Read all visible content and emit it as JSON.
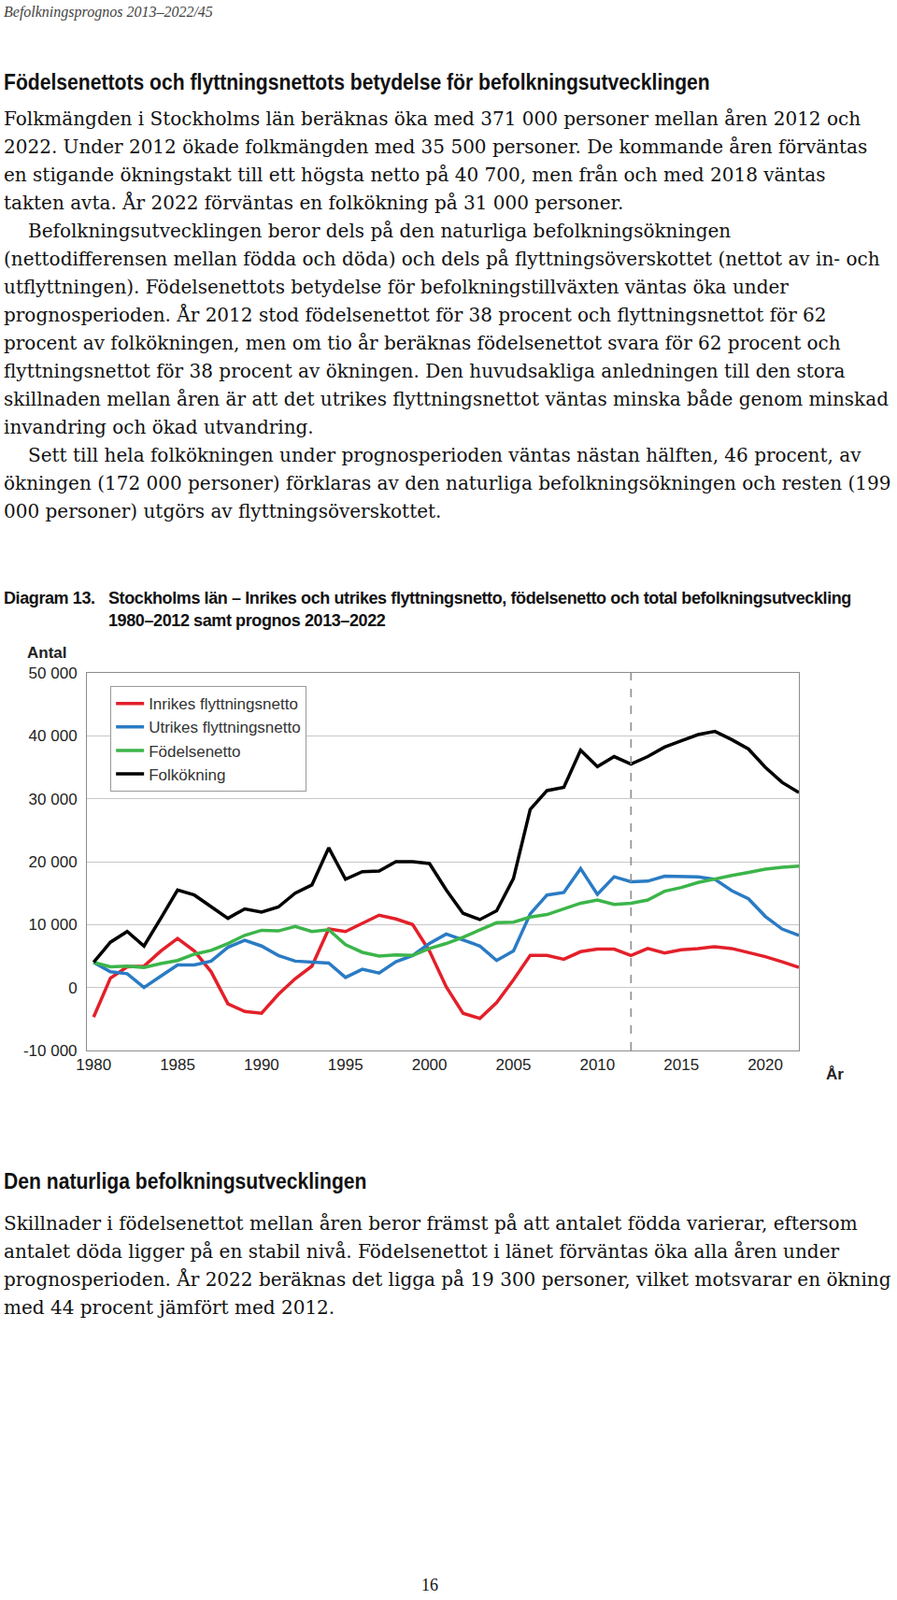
{
  "header": "Befolkningsprognos 2013–2022/45",
  "heading": "Födelsenettots och flyttningsnettots betydelse för befolkningsutvecklingen",
  "paragraphs": [
    "Folkmängden i Stockholms län beräknas öka med 371 000 personer mellan åren 2012 och 2022. Under 2012 ökade folkmängden med 35 500 personer. De kommande åren förväntas en stigande ökningstakt till ett högsta netto på 40 700, men från och med 2018 väntas takten avta. År 2022 förväntas en folkökning på 31 000 personer.",
    "Befolkningsutvecklingen beror dels på den naturliga befolkningsökningen (nettodifferensen mellan födda och döda) och dels på flyttningsöverskottet (nettot av in- och utflyttningen). Födelsenettots betydelse för befolkningstillväxten väntas öka under prognosperioden. År 2012 stod födelsenettot för 38 procent och flyttningsnettot för 62 procent av folkökningen, men om tio år beräknas födelsenettot svara för 62 procent och flyttningsnettot för 38 procent av ökningen. Den huvudsakliga anledningen till den stora skillnaden mellan åren är att det utrikes flyttningsnettot väntas minska både genom minskad invandring och ökad utvandring.",
    "Sett till hela folkökningen under prognosperioden väntas nästan hälften, 46 procent, av ökningen (172 000 personer) förklaras av den naturliga befolkningsökningen och resten (199 000 personer) utgörs av flyttningsöverskottet."
  ],
  "chart_data": {
    "type": "line",
    "label": "Diagram 13.",
    "title": "Stockholms län – Inrikes och utrikes flyttningsnetto, födelsenetto och total befolknings­utveckling 1980–2012 samt prognos 2013–2022",
    "ylabel": "Antal",
    "xlabel": "År",
    "x": [
      1980,
      1981,
      1982,
      1983,
      1984,
      1985,
      1986,
      1987,
      1988,
      1989,
      1990,
      1991,
      1992,
      1993,
      1994,
      1995,
      1996,
      1997,
      1998,
      1999,
      2000,
      2001,
      2002,
      2003,
      2004,
      2005,
      2006,
      2007,
      2008,
      2009,
      2010,
      2011,
      2012,
      2013,
      2014,
      2015,
      2016,
      2017,
      2018,
      2019,
      2020,
      2021,
      2022
    ],
    "series": [
      {
        "name": "Inrikes flyttningsnetto",
        "color": "#e3202a",
        "values": [
          -4700,
          1500,
          3300,
          3400,
          5800,
          7800,
          5800,
          2500,
          -2600,
          -3800,
          -4100,
          -1100,
          1400,
          3400,
          9300,
          8900,
          10200,
          11500,
          10900,
          10000,
          5800,
          100,
          -4100,
          -4900,
          -2400,
          1200,
          5100,
          5100,
          4500,
          5700,
          6100,
          6100,
          5100,
          6200,
          5500,
          6000,
          6200,
          6500,
          6200,
          5600,
          4900,
          4100,
          3200
        ]
      },
      {
        "name": "Utrikes flyttningsnetto",
        "color": "#2a7bc4",
        "values": [
          4000,
          2500,
          2200,
          0,
          1800,
          3600,
          3600,
          4200,
          6400,
          7500,
          6600,
          5100,
          4200,
          4100,
          3900,
          1600,
          2900,
          2300,
          4100,
          5100,
          7000,
          8500,
          7600,
          6600,
          4300,
          5800,
          11700,
          14700,
          15100,
          18900,
          14800,
          17600,
          16800,
          16900,
          17700,
          17600,
          17600,
          17200,
          15400,
          14100,
          11300,
          9300,
          8300
        ]
      },
      {
        "name": "Födelsenetto",
        "color": "#3cb54a",
        "values": [
          4000,
          3300,
          3400,
          3200,
          3800,
          4300,
          5300,
          5900,
          7000,
          8300,
          9100,
          9000,
          9700,
          8900,
          9200,
          6800,
          5600,
          5000,
          5200,
          5100,
          6200,
          7000,
          8000,
          9200,
          10300,
          10400,
          11200,
          11600,
          12500,
          13400,
          13900,
          13200,
          13400,
          13900,
          15300,
          15900,
          16700,
          17300,
          17800,
          18300,
          18800,
          19100,
          19300
        ]
      },
      {
        "name": "Folkökning",
        "color": "#000000",
        "values": [
          4000,
          7200,
          8900,
          6600,
          11000,
          15500,
          14700,
          12800,
          11000,
          12500,
          12000,
          12800,
          15000,
          16300,
          22200,
          17200,
          18400,
          18500,
          20000,
          20000,
          19700,
          15500,
          11800,
          10800,
          12200,
          17300,
          28300,
          31300,
          31800,
          37700,
          35100,
          36700,
          35500,
          36700,
          38200,
          39200,
          40200,
          40700,
          39400,
          37900,
          35000,
          32600,
          31000
        ]
      }
    ],
    "xlim": [
      1979.6,
      2022
    ],
    "xticks": [
      1980,
      1985,
      1990,
      1995,
      2000,
      2005,
      2010,
      2015,
      2020
    ],
    "ylim": [
      -10000,
      50000
    ],
    "yticks": [
      {
        "value": -10000,
        "label": "-10 000"
      },
      0,
      {
        "value": 10000,
        "label": "10 000"
      },
      {
        "value": 20000,
        "label": "20 000"
      },
      {
        "value": 30000,
        "label": "30 000"
      },
      {
        "value": 40000,
        "label": "40 000"
      },
      {
        "value": 50000,
        "label": "50 000"
      }
    ],
    "grid": true,
    "legend": "top left",
    "vline": {
      "x": 2012,
      "line_style": "dash"
    }
  },
  "section": {
    "heading": "Den naturliga befolkningsutvecklingen",
    "paragraphs": [
      "Skillnader i födelsenettot mellan åren beror främst på att antalet födda varierar, eftersom antalet döda ligger på en stabil nivå. Födelsenettot i länet förväntas öka alla åren under prognosperioden. År 2022 beräknas det ligga på 19 300 personer, vilket motsvarar en ökning med 44 procent jämfört med 2012."
    ]
  },
  "page_number": "16"
}
